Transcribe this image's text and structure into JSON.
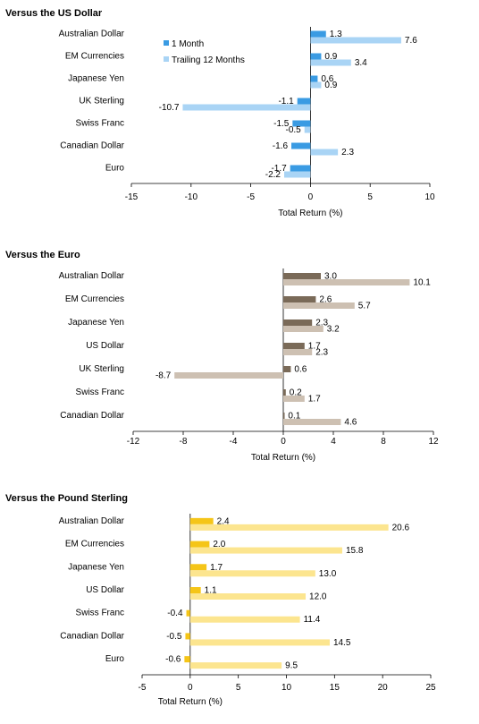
{
  "chart_data": [
    {
      "type": "bar",
      "orientation": "horizontal",
      "title": "Versus the US Dollar",
      "xlabel": "Total Return (%)",
      "xlim": [
        -15,
        10
      ],
      "xticks": [
        -15,
        -10,
        -5,
        0,
        5,
        10
      ],
      "categories": [
        "Australian Dollar",
        "EM Currencies",
        "Japanese Yen",
        "UK Sterling",
        "Swiss Franc",
        "Canadian Dollar",
        "Euro"
      ],
      "series": [
        {
          "name": "1 Month",
          "values": [
            1.3,
            0.9,
            0.6,
            -1.1,
            -1.5,
            -1.6,
            -1.7
          ],
          "color": "#3a9be3"
        },
        {
          "name": "Trailing 12 Months",
          "values": [
            7.6,
            3.4,
            0.9,
            -10.7,
            -0.5,
            2.3,
            -2.2
          ],
          "color": "#a9d4f5"
        }
      ],
      "value_labels": [
        [
          "1.3",
          "0.9",
          "0.6",
          "-1.1",
          "-1.5",
          "-1.6",
          "-1.7"
        ],
        [
          "7.6",
          "3.4",
          "0.9",
          "-10.7",
          "-0.5",
          "2.3",
          "-2.2"
        ]
      ],
      "legend": "top-left inside plot"
    },
    {
      "type": "bar",
      "orientation": "horizontal",
      "title": "Versus the Euro",
      "xlabel": "Total Return (%)",
      "xlim": [
        -12,
        12
      ],
      "xticks": [
        -12,
        -8,
        -4,
        0,
        4,
        8,
        12
      ],
      "categories": [
        "Australian Dollar",
        "EM Currencies",
        "Japanese Yen",
        "US Dollar",
        "UK Sterling",
        "Swiss Franc",
        "Canadian Dollar"
      ],
      "series": [
        {
          "values": [
            3.0,
            2.6,
            2.3,
            1.7,
            0.6,
            0.2,
            0.1
          ],
          "color": "#7a6a58"
        },
        {
          "values": [
            10.1,
            5.7,
            3.2,
            2.3,
            -8.7,
            1.7,
            4.6
          ],
          "color": "#cdc0b2"
        }
      ],
      "value_labels": [
        [
          "3.0",
          "2.6",
          "2.3",
          "1.7",
          "0.6",
          "0.2",
          "0.1"
        ],
        [
          "10.1",
          "5.7",
          "3.2",
          "2.3",
          "-8.7",
          "1.7",
          "4.6"
        ]
      ]
    },
    {
      "type": "bar",
      "orientation": "horizontal",
      "title": "Versus the Pound Sterling",
      "xlabel": "Total Return (%)",
      "xlim": [
        -5,
        25
      ],
      "xticks": [
        -5,
        0,
        5,
        10,
        15,
        20,
        25
      ],
      "categories": [
        "Australian Dollar",
        "EM Currencies",
        "Japanese Yen",
        "US Dollar",
        "Swiss Franc",
        "Canadian Dollar",
        "Euro"
      ],
      "series": [
        {
          "values": [
            2.4,
            2.0,
            1.7,
            1.1,
            -0.4,
            -0.5,
            -0.6
          ],
          "color": "#f5c518"
        },
        {
          "values": [
            20.6,
            15.8,
            13.0,
            12.0,
            11.4,
            14.5,
            9.5
          ],
          "color": "#fce58f"
        }
      ],
      "value_labels": [
        [
          "2.4",
          "2.0",
          "1.7",
          "1.1",
          "-0.4",
          "-0.5",
          "-0.6"
        ],
        [
          "20.6",
          "15.8",
          "13.0",
          "12.0",
          "11.4",
          "14.5",
          "9.5"
        ]
      ]
    }
  ]
}
